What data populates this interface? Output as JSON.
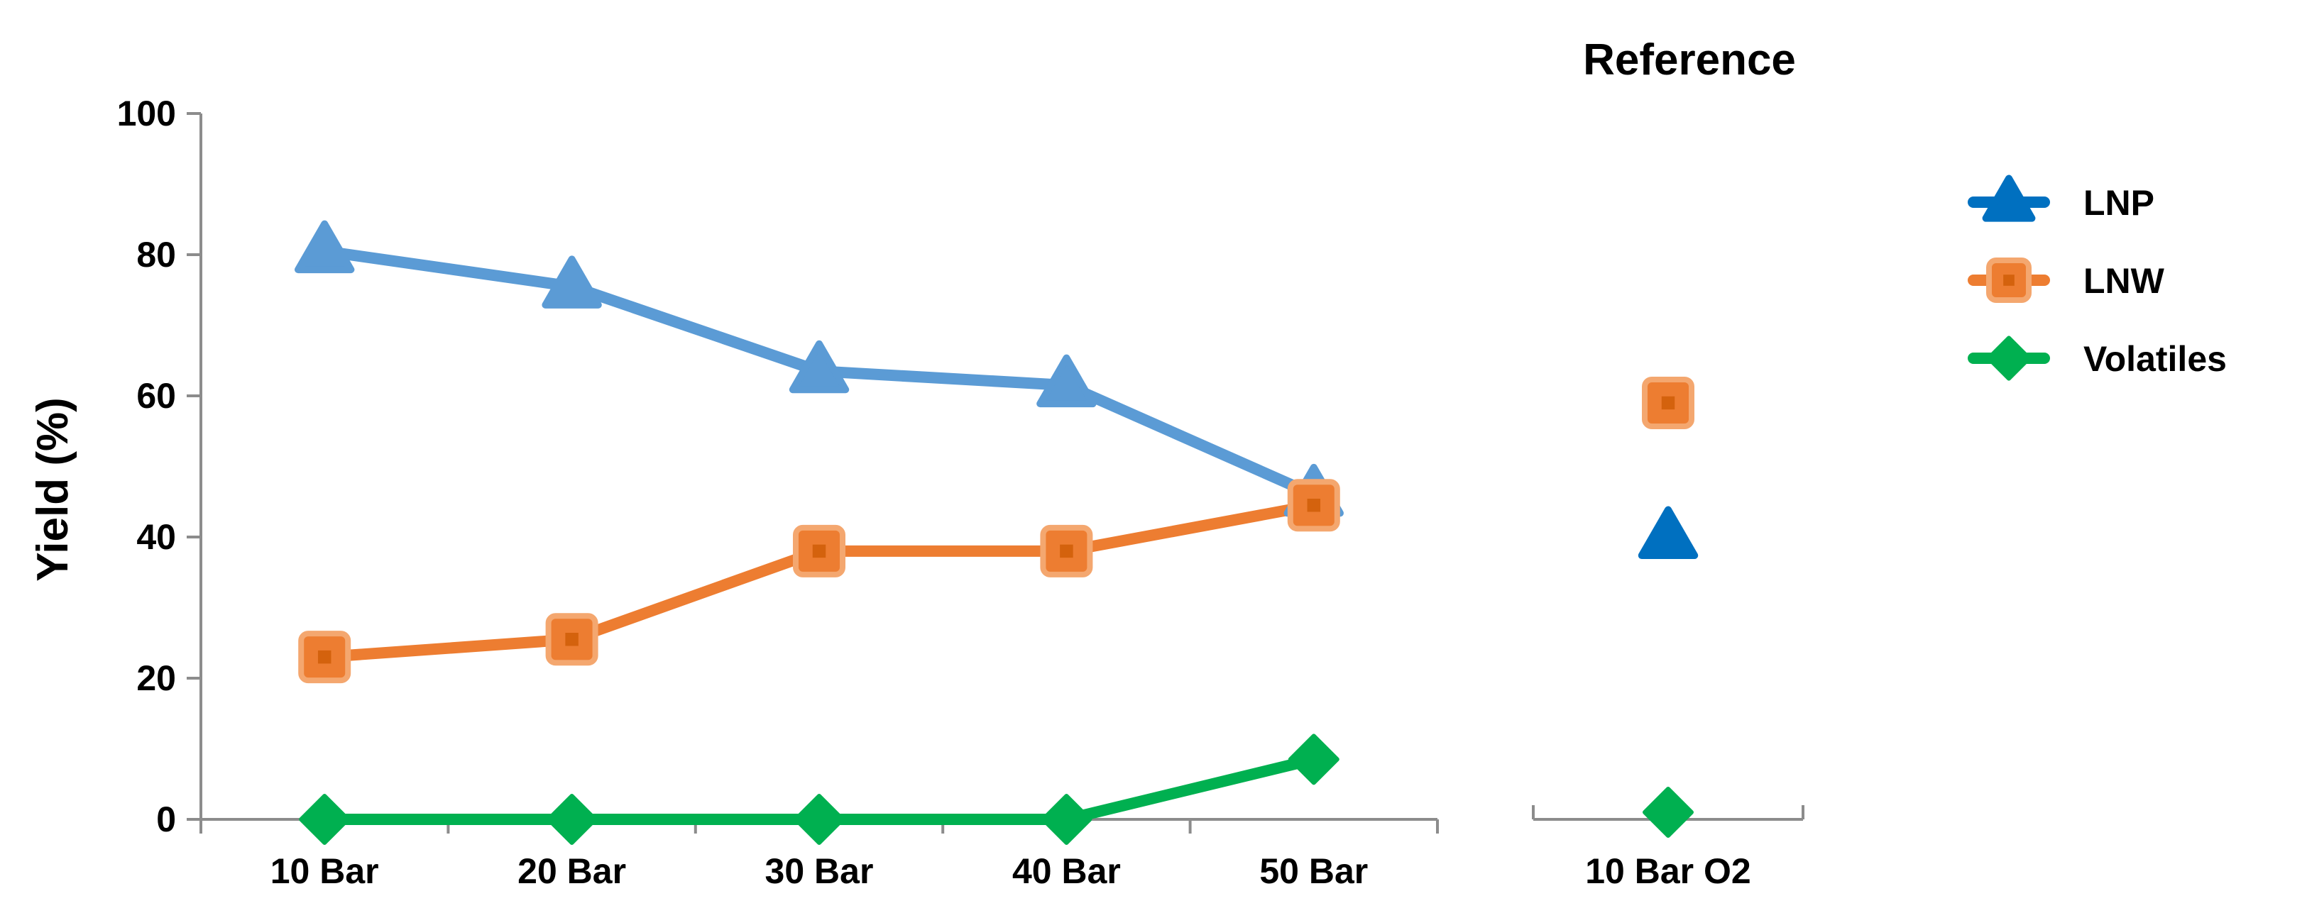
{
  "chart_data": [
    {
      "type": "line",
      "title": "",
      "xlabel": "",
      "ylabel": "Yield (%)",
      "ylim": [
        0,
        100
      ],
      "yticks": [
        0,
        20,
        40,
        60,
        80,
        100
      ],
      "grid": false,
      "legend_position": "right",
      "categories": [
        "10 Bar",
        "20 Bar",
        "30 Bar",
        "40 Bar",
        "50 Bar"
      ],
      "series": [
        {
          "name": "LNP",
          "values": [
            80.5,
            75.5,
            63.5,
            61.5,
            46
          ],
          "color": "#5b9bd5",
          "marker": "triangle"
        },
        {
          "name": "LNW",
          "values": [
            23,
            25.5,
            38,
            38,
            44.5
          ],
          "color": "#ed7d31",
          "marker": "square"
        },
        {
          "name": "Volatiles",
          "values": [
            0,
            0,
            0,
            0,
            8.5
          ],
          "color": "#00b050",
          "marker": "diamond"
        }
      ]
    },
    {
      "type": "scatter",
      "title": "Reference",
      "ylim": [
        0,
        100
      ],
      "categories": [
        "10 Bar O2"
      ],
      "series": [
        {
          "name": "LNP",
          "values": [
            40
          ],
          "color": "#0070c0",
          "marker": "triangle"
        },
        {
          "name": "LNW",
          "values": [
            59
          ],
          "color": "#ed7d31",
          "marker": "square"
        },
        {
          "name": "Volatiles",
          "values": [
            1
          ],
          "color": "#00b050",
          "marker": "diamond"
        }
      ]
    }
  ],
  "legend": {
    "items": [
      {
        "name": "LNP",
        "color": "#0070c0",
        "marker": "triangle"
      },
      {
        "name": "LNW",
        "color": "#ed7d31",
        "marker": "square"
      },
      {
        "name": "Volatiles",
        "color": "#00b050",
        "marker": "diamond"
      }
    ]
  }
}
